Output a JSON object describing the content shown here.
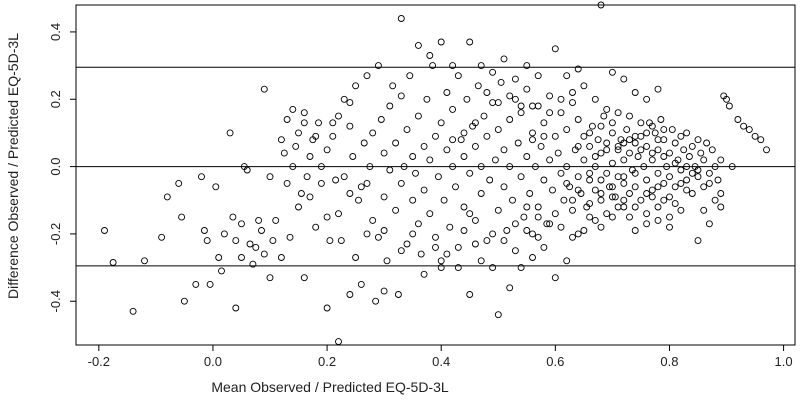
{
  "chart_data": {
    "type": "scatter",
    "title": "",
    "xlabel": "Mean Observed / Predicted EQ-5D-3L",
    "ylabel": "Difference Observed / Predicted EQ-5D-3L",
    "xlim": [
      -0.24,
      1.02
    ],
    "ylim": [
      -0.53,
      0.48
    ],
    "x_ticks": [
      -0.2,
      0.0,
      0.2,
      0.4,
      0.6,
      0.8,
      1.0
    ],
    "x_tick_labels": [
      "-0.2",
      "0.0",
      "0.2",
      "0.4",
      "0.6",
      "0.8",
      "1.0"
    ],
    "y_ticks": [
      -0.4,
      -0.2,
      0.0,
      0.2,
      0.4
    ],
    "y_tick_labels": [
      "-0.4",
      "-0.2",
      "0.0",
      "0.2",
      "0.4"
    ],
    "reference_lines": [
      0.295,
      0.0,
      -0.295
    ],
    "grid": false,
    "legend": "none",
    "marker": "open-circle",
    "colors": {
      "points": "#000000",
      "lines": "#000000",
      "background": "#ffffff"
    },
    "points": [
      [
        -0.19,
        -0.19
      ],
      [
        -0.175,
        -0.285
      ],
      [
        -0.14,
        -0.43
      ],
      [
        -0.12,
        -0.28
      ],
      [
        -0.09,
        -0.21
      ],
      [
        -0.08,
        -0.09
      ],
      [
        -0.06,
        -0.05
      ],
      [
        -0.055,
        -0.15
      ],
      [
        -0.05,
        -0.4
      ],
      [
        -0.03,
        -0.35
      ],
      [
        -0.02,
        -0.03
      ],
      [
        -0.015,
        -0.19
      ],
      [
        -0.01,
        -0.22
      ],
      [
        -0.005,
        -0.35
      ],
      [
        0.005,
        -0.06
      ],
      [
        0.01,
        -0.27
      ],
      [
        0.015,
        -0.31
      ],
      [
        0.02,
        -0.2
      ],
      [
        0.03,
        0.1
      ],
      [
        0.035,
        -0.15
      ],
      [
        0.04,
        -0.22
      ],
      [
        0.04,
        -0.42
      ],
      [
        0.05,
        -0.27
      ],
      [
        0.05,
        -0.17
      ],
      [
        0.055,
        0.0
      ],
      [
        0.06,
        -0.01
      ],
      [
        0.065,
        -0.23
      ],
      [
        0.07,
        -0.29
      ],
      [
        0.075,
        -0.24
      ],
      [
        0.08,
        -0.16
      ],
      [
        0.085,
        -0.19
      ],
      [
        0.09,
        -0.26
      ],
      [
        0.09,
        0.23
      ],
      [
        0.1,
        -0.03
      ],
      [
        0.1,
        -0.33
      ],
      [
        0.105,
        -0.22
      ],
      [
        0.11,
        -0.16
      ],
      [
        0.12,
        -0.27
      ],
      [
        0.12,
        0.08
      ],
      [
        0.125,
        0.04
      ],
      [
        0.13,
        -0.05
      ],
      [
        0.13,
        0.14
      ],
      [
        0.135,
        -0.21
      ],
      [
        0.14,
        0.0
      ],
      [
        0.145,
        0.06
      ],
      [
        0.15,
        0.1
      ],
      [
        0.15,
        -0.12
      ],
      [
        0.155,
        -0.08
      ],
      [
        0.16,
        0.16
      ],
      [
        0.16,
        -0.33
      ],
      [
        0.165,
        -0.03
      ],
      [
        0.17,
        -0.09
      ],
      [
        0.17,
        0.03
      ],
      [
        0.175,
        0.08
      ],
      [
        0.18,
        -0.18
      ],
      [
        0.185,
        0.13
      ],
      [
        0.19,
        -0.05
      ],
      [
        0.19,
        0.0
      ],
      [
        0.2,
        0.05
      ],
      [
        0.2,
        -0.15
      ],
      [
        0.205,
        -0.22
      ],
      [
        0.21,
        0.09
      ],
      [
        0.215,
        -0.04
      ],
      [
        0.22,
        0.15
      ],
      [
        0.22,
        -0.14
      ],
      [
        0.225,
        -0.22
      ],
      [
        0.23,
        0.2
      ],
      [
        0.23,
        -0.03
      ],
      [
        0.24,
        0.12
      ],
      [
        0.24,
        -0.08
      ],
      [
        0.245,
        0.03
      ],
      [
        0.25,
        -0.27
      ],
      [
        0.25,
        0.24
      ],
      [
        0.255,
        -0.1
      ],
      [
        0.26,
        -0.06
      ],
      [
        0.265,
        0.07
      ],
      [
        0.27,
        -0.05
      ],
      [
        0.27,
        -0.2
      ],
      [
        0.275,
        0.0
      ],
      [
        0.28,
        -0.16
      ],
      [
        0.28,
        0.1
      ],
      [
        0.285,
        -0.4
      ],
      [
        0.29,
        -0.21
      ],
      [
        0.295,
        0.14
      ],
      [
        0.3,
        -0.09
      ],
      [
        0.3,
        0.04
      ],
      [
        0.305,
        -0.28
      ],
      [
        0.31,
        0.18
      ],
      [
        0.31,
        -0.01
      ],
      [
        0.315,
        0.24
      ],
      [
        0.32,
        -0.13
      ],
      [
        0.32,
        0.07
      ],
      [
        0.325,
        -0.38
      ],
      [
        0.33,
        0.21
      ],
      [
        0.33,
        -0.05
      ],
      [
        0.335,
        0.0
      ],
      [
        0.34,
        -0.23
      ],
      [
        0.34,
        0.11
      ],
      [
        0.345,
        0.27
      ],
      [
        0.35,
        -0.1
      ],
      [
        0.35,
        0.03
      ],
      [
        0.355,
        -0.02
      ],
      [
        0.36,
        0.15
      ],
      [
        0.36,
        -0.17
      ],
      [
        0.365,
        -0.26
      ],
      [
        0.37,
        0.06
      ],
      [
        0.37,
        -0.07
      ],
      [
        0.375,
        0.2
      ],
      [
        0.38,
        -0.14
      ],
      [
        0.38,
        0.02
      ],
      [
        0.385,
        0.3
      ],
      [
        0.39,
        -0.21
      ],
      [
        0.39,
        0.09
      ],
      [
        0.395,
        -0.03
      ],
      [
        0.4,
        0.13
      ],
      [
        0.4,
        -0.28
      ],
      [
        0.405,
        -0.1
      ],
      [
        0.41,
        0.05
      ],
      [
        0.41,
        0.22
      ],
      [
        0.415,
        -0.18
      ],
      [
        0.42,
        0.0
      ],
      [
        0.42,
        0.17
      ],
      [
        0.425,
        -0.06
      ],
      [
        0.43,
        0.27
      ],
      [
        0.43,
        -0.24
      ],
      [
        0.435,
        0.08
      ],
      [
        0.44,
        -0.12
      ],
      [
        0.44,
        0.03
      ],
      [
        0.445,
        0.2
      ],
      [
        0.45,
        -0.38
      ],
      [
        0.45,
        -0.02
      ],
      [
        0.455,
        0.12
      ],
      [
        0.46,
        -0.16
      ],
      [
        0.46,
        0.06
      ],
      [
        0.465,
        0.24
      ],
      [
        0.47,
        -0.08
      ],
      [
        0.47,
        0.0
      ],
      [
        0.475,
        0.15
      ],
      [
        0.48,
        -0.22
      ],
      [
        0.48,
        0.09
      ],
      [
        0.485,
        -0.04
      ],
      [
        0.49,
        0.19
      ],
      [
        0.49,
        -0.3
      ],
      [
        0.495,
        0.02
      ],
      [
        0.5,
        0.11
      ],
      [
        0.5,
        -0.13
      ],
      [
        0.505,
        0.25
      ],
      [
        0.51,
        -0.06
      ],
      [
        0.51,
        0.05
      ],
      [
        0.515,
        -0.19
      ],
      [
        0.52,
        0.14
      ],
      [
        0.52,
        0.0
      ],
      [
        0.525,
        -0.1
      ],
      [
        0.53,
        0.2
      ],
      [
        0.53,
        -0.25
      ],
      [
        0.535,
        0.07
      ],
      [
        0.54,
        -0.03
      ],
      [
        0.54,
        0.16
      ],
      [
        0.545,
        -0.15
      ],
      [
        0.55,
        0.03
      ],
      [
        0.55,
        0.23
      ],
      [
        0.555,
        -0.08
      ],
      [
        0.56,
        0.1
      ],
      [
        0.56,
        -0.2
      ],
      [
        0.565,
        0.0
      ],
      [
        0.57,
        0.18
      ],
      [
        0.57,
        -0.12
      ],
      [
        0.575,
        0.06
      ],
      [
        0.58,
        -0.04
      ],
      [
        0.58,
        0.13
      ],
      [
        0.585,
        -0.17
      ],
      [
        0.59,
        0.02
      ],
      [
        0.59,
        0.21
      ],
      [
        0.595,
        -0.07
      ],
      [
        0.6,
        0.09
      ],
      [
        0.6,
        -0.14
      ],
      [
        0.605,
        0.04
      ],
      [
        0.61,
        0.16
      ],
      [
        0.61,
        -0.02
      ],
      [
        0.615,
        -0.1
      ],
      [
        0.62,
        0.11
      ],
      [
        0.62,
        0.0
      ],
      [
        0.625,
        -0.06
      ],
      [
        0.63,
        0.19
      ],
      [
        0.63,
        -0.13
      ],
      [
        0.635,
        0.05
      ],
      [
        0.64,
        -0.03
      ],
      [
        0.64,
        0.14
      ],
      [
        0.645,
        -0.08
      ],
      [
        0.65,
        0.02
      ],
      [
        0.65,
        0.09
      ],
      [
        0.655,
        -0.12
      ],
      [
        0.66,
        0.06
      ],
      [
        0.66,
        -0.04
      ],
      [
        0.665,
        0.12
      ],
      [
        0.67,
        0.0
      ],
      [
        0.67,
        -0.07
      ],
      [
        0.675,
        0.08
      ],
      [
        0.68,
        -0.1
      ],
      [
        0.68,
        0.04
      ],
      [
        0.685,
        0.15
      ],
      [
        0.69,
        -0.02
      ],
      [
        0.69,
        0.07
      ],
      [
        0.695,
        -0.06
      ],
      [
        0.7,
        0.1
      ],
      [
        0.7,
        0.01
      ],
      [
        0.705,
        -0.09
      ],
      [
        0.71,
        0.05
      ],
      [
        0.71,
        -0.03
      ],
      [
        0.715,
        0.08
      ],
      [
        0.72,
        -0.05
      ],
      [
        0.72,
        0.02
      ],
      [
        0.725,
        0.11
      ],
      [
        0.73,
        -0.08
      ],
      [
        0.73,
        0.04
      ],
      [
        0.735,
        -0.01
      ],
      [
        0.74,
        0.07
      ],
      [
        0.74,
        -0.06
      ],
      [
        0.745,
        0.03
      ],
      [
        0.75,
        -0.1
      ],
      [
        0.75,
        0.09
      ],
      [
        0.755,
        0.0
      ],
      [
        0.76,
        -0.04
      ],
      [
        0.76,
        0.06
      ],
      [
        0.765,
        0.13
      ],
      [
        0.77,
        -0.07
      ],
      [
        0.77,
        0.02
      ],
      [
        0.775,
        0.1
      ],
      [
        0.78,
        -0.02
      ],
      [
        0.78,
        0.05
      ],
      [
        0.785,
        0.14
      ],
      [
        0.79,
        -0.05
      ],
      [
        0.79,
        0.08
      ],
      [
        0.795,
        0.0
      ],
      [
        0.8,
        0.04
      ],
      [
        0.8,
        -0.03
      ],
      [
        0.805,
        0.11
      ],
      [
        0.81,
        0.07
      ],
      [
        0.81,
        -0.06
      ],
      [
        0.815,
        0.02
      ],
      [
        0.82,
        0.09
      ],
      [
        0.82,
        -0.01
      ],
      [
        0.825,
        0.05
      ],
      [
        0.83,
        -0.04
      ],
      [
        0.83,
        0.1
      ],
      [
        0.835,
        0.03
      ],
      [
        0.84,
        -0.08
      ],
      [
        0.84,
        0.06
      ],
      [
        0.845,
        0.0
      ],
      [
        0.85,
        0.08
      ],
      [
        0.85,
        -0.03
      ],
      [
        0.855,
        0.04
      ],
      [
        0.86,
        -0.06
      ],
      [
        0.86,
        0.02
      ],
      [
        0.865,
        0.07
      ],
      [
        0.87,
        -0.02
      ],
      [
        0.875,
        0.05
      ],
      [
        0.88,
        0.0
      ],
      [
        0.885,
        -0.04
      ],
      [
        0.89,
        0.02
      ],
      [
        0.895,
        0.21
      ],
      [
        0.9,
        0.2
      ],
      [
        0.905,
        0.18
      ],
      [
        0.91,
        0.0
      ],
      [
        0.92,
        0.14
      ],
      [
        0.93,
        0.12
      ],
      [
        0.94,
        0.11
      ],
      [
        0.95,
        0.09
      ],
      [
        0.96,
        0.08
      ],
      [
        0.97,
        0.05
      ],
      [
        0.85,
        -0.22
      ],
      [
        0.86,
        -0.13
      ],
      [
        0.88,
        -0.1
      ],
      [
        0.87,
        -0.17
      ],
      [
        0.89,
        -0.12
      ],
      [
        0.6,
        -0.33
      ],
      [
        0.62,
        -0.28
      ],
      [
        0.64,
        -0.2
      ],
      [
        0.66,
        -0.15
      ],
      [
        0.68,
        -0.18
      ],
      [
        0.7,
        -0.15
      ],
      [
        0.72,
        -0.12
      ],
      [
        0.74,
        -0.19
      ],
      [
        0.76,
        -0.17
      ],
      [
        0.78,
        -0.12
      ],
      [
        0.8,
        -0.15
      ],
      [
        0.82,
        -0.13
      ],
      [
        0.77,
        -0.09
      ],
      [
        0.79,
        -0.1
      ],
      [
        0.81,
        -0.11
      ],
      [
        0.83,
        -0.07
      ],
      [
        0.73,
        -0.15
      ],
      [
        0.71,
        -0.12
      ],
      [
        0.69,
        -0.14
      ],
      [
        0.67,
        -0.16
      ],
      [
        0.65,
        -0.19
      ],
      [
        0.63,
        -0.21
      ],
      [
        0.58,
        -0.24
      ],
      [
        0.56,
        -0.27
      ],
      [
        0.54,
        -0.3
      ],
      [
        0.52,
        -0.36
      ],
      [
        0.5,
        -0.44
      ],
      [
        0.47,
        -0.28
      ],
      [
        0.43,
        -0.3
      ],
      [
        0.4,
        -0.3
      ],
      [
        0.37,
        -0.32
      ],
      [
        0.36,
        0.36
      ],
      [
        0.38,
        0.33
      ],
      [
        0.4,
        0.37
      ],
      [
        0.42,
        0.3
      ],
      [
        0.45,
        0.37
      ],
      [
        0.47,
        0.3
      ],
      [
        0.49,
        0.28
      ],
      [
        0.51,
        0.32
      ],
      [
        0.53,
        0.26
      ],
      [
        0.55,
        0.3
      ],
      [
        0.57,
        0.27
      ],
      [
        0.6,
        0.35
      ],
      [
        0.62,
        0.27
      ],
      [
        0.64,
        0.29
      ],
      [
        0.33,
        0.44
      ],
      [
        0.68,
        0.48
      ],
      [
        0.7,
        0.28
      ],
      [
        0.72,
        0.26
      ],
      [
        0.74,
        0.22
      ],
      [
        0.76,
        0.2
      ],
      [
        0.78,
        0.23
      ],
      [
        0.29,
        0.3
      ],
      [
        0.27,
        0.27
      ],
      [
        0.24,
        0.19
      ],
      [
        0.21,
        0.13
      ],
      [
        0.18,
        0.09
      ],
      [
        0.16,
        0.13
      ],
      [
        0.14,
        0.17
      ],
      [
        0.22,
        -0.52
      ],
      [
        0.24,
        -0.38
      ],
      [
        0.26,
        -0.35
      ],
      [
        0.3,
        -0.37
      ],
      [
        0.33,
        -0.25
      ],
      [
        0.56,
        0.18
      ],
      [
        0.59,
        0.16
      ],
      [
        0.61,
        0.2
      ],
      [
        0.63,
        0.22
      ],
      [
        0.65,
        0.24
      ],
      [
        0.67,
        0.2
      ],
      [
        0.69,
        0.17
      ],
      [
        0.71,
        0.16
      ],
      [
        0.73,
        0.15
      ],
      [
        0.75,
        0.13
      ],
      [
        0.77,
        0.12
      ],
      [
        0.79,
        0.11
      ],
      [
        0.55,
        -0.12
      ],
      [
        0.57,
        -0.15
      ],
      [
        0.59,
        -0.17
      ],
      [
        0.61,
        -0.18
      ],
      [
        0.63,
        -0.1
      ],
      [
        0.66,
        -0.11
      ],
      [
        0.68,
        -0.08
      ],
      [
        0.7,
        -0.09
      ],
      [
        0.72,
        -0.1
      ],
      [
        0.74,
        -0.12
      ],
      [
        0.76,
        -0.14
      ],
      [
        0.78,
        -0.16
      ],
      [
        0.8,
        -0.18
      ],
      [
        0.64,
        0.06
      ],
      [
        0.66,
        0.1
      ],
      [
        0.68,
        0.12
      ],
      [
        0.7,
        0.13
      ],
      [
        0.72,
        0.07
      ],
      [
        0.74,
        0.09
      ],
      [
        0.76,
        0.1
      ],
      [
        0.78,
        0.08
      ],
      [
        0.67,
        0.03
      ],
      [
        0.69,
        0.05
      ],
      [
        0.71,
        0.06
      ],
      [
        0.73,
        0.08
      ],
      [
        0.75,
        0.05
      ],
      [
        0.77,
        0.04
      ],
      [
        0.79,
        0.03
      ],
      [
        0.81,
        0.01
      ],
      [
        0.83,
        0.0
      ],
      [
        0.85,
        -0.01
      ],
      [
        0.87,
        -0.05
      ],
      [
        0.89,
        -0.08
      ],
      [
        0.62,
        -0.05
      ],
      [
        0.64,
        -0.07
      ],
      [
        0.66,
        -0.02
      ],
      [
        0.68,
        -0.04
      ],
      [
        0.7,
        -0.06
      ],
      [
        0.72,
        -0.03
      ],
      [
        0.74,
        -0.02
      ],
      [
        0.76,
        -0.08
      ],
      [
        0.78,
        -0.06
      ],
      [
        0.8,
        -0.09
      ],
      [
        0.82,
        -0.05
      ],
      [
        0.84,
        -0.02
      ],
      [
        0.48,
        0.22
      ],
      [
        0.5,
        0.19
      ],
      [
        0.52,
        0.21
      ],
      [
        0.54,
        0.18
      ],
      [
        0.56,
        0.08
      ],
      [
        0.58,
        0.09
      ],
      [
        0.46,
        0.13
      ],
      [
        0.44,
        0.1
      ],
      [
        0.42,
        0.08
      ],
      [
        0.2,
        -0.42
      ],
      [
        0.3,
        -0.19
      ],
      [
        0.35,
        -0.2
      ],
      [
        0.39,
        -0.24
      ],
      [
        0.41,
        -0.26
      ],
      [
        0.44,
        -0.19
      ],
      [
        0.46,
        -0.23
      ],
      [
        0.49,
        -0.2
      ],
      [
        0.51,
        -0.22
      ],
      [
        0.53,
        -0.17
      ],
      [
        0.55,
        -0.19
      ],
      [
        0.57,
        -0.21
      ],
      [
        0.45,
        -0.14
      ]
    ]
  }
}
